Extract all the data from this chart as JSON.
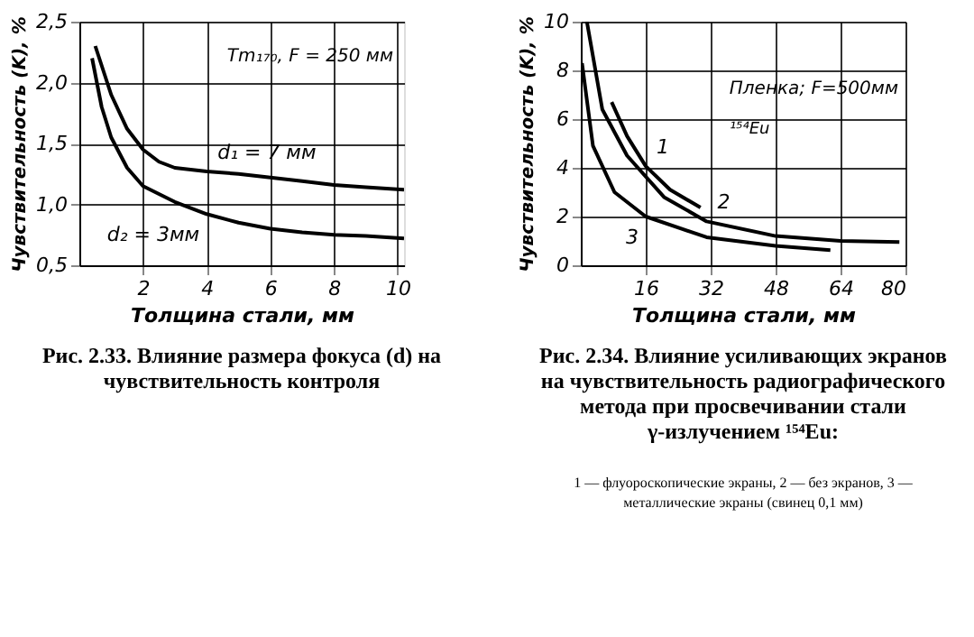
{
  "chart_data": [
    {
      "type": "line",
      "xlabel": "Толщина стали, мм",
      "ylabel": "Чувствительность (K), %",
      "xlim": [
        0,
        10.2
      ],
      "xticks": [
        2,
        4,
        6,
        8,
        10
      ],
      "ylim": [
        0.5,
        2.5
      ],
      "yticks": [
        {
          "value": 0.5,
          "label": "0,5"
        },
        {
          "value": 1.0,
          "label": "1,0"
        },
        {
          "value": 1.5,
          "label": "1,5"
        },
        {
          "value": 2.0,
          "label": "2,0"
        },
        {
          "value": 2.5,
          "label": "2,5"
        }
      ],
      "grid": true,
      "marker": "none",
      "line_style": "solid",
      "series": [
        {
          "name": "d₁ = 7 мм",
          "color": "#000000",
          "x": [
            0.5,
            1,
            1.5,
            2,
            2.5,
            3,
            4,
            5,
            6,
            7,
            8,
            9,
            10.2
          ],
          "values": [
            2.3,
            1.9,
            1.62,
            1.45,
            1.35,
            1.3,
            1.27,
            1.25,
            1.22,
            1.19,
            1.16,
            1.14,
            1.12
          ]
        },
        {
          "name": "d₂ = 3мм",
          "color": "#000000",
          "x": [
            0.4,
            0.7,
            1,
            1.5,
            2,
            3,
            4,
            5,
            6,
            7,
            8,
            9,
            10.2
          ],
          "values": [
            2.2,
            1.8,
            1.55,
            1.3,
            1.15,
            1.02,
            0.92,
            0.85,
            0.8,
            0.77,
            0.75,
            0.74,
            0.72
          ]
        }
      ],
      "annotations": [
        "Tm₁₇₀, F = 250 мм",
        "Рис. 2.33. Влияние размера фокуса (d) на чувствительность контроля"
      ]
    },
    {
      "type": "line",
      "xlabel": "Толщина стали, мм",
      "ylabel": "Чувствительность (K), %",
      "xlim": [
        0,
        80
      ],
      "xticks": [
        16,
        32,
        48,
        64,
        80
      ],
      "ylim": [
        0,
        10
      ],
      "yticks": [
        0,
        2,
        4,
        6,
        8,
        10
      ],
      "grid": true,
      "marker": "none",
      "line_style": "solid",
      "series": [
        {
          "name": "1",
          "color": "#000000",
          "x": [
            7.6,
            11.4,
            16,
            22,
            29.5
          ],
          "values": [
            6.7,
            5.3,
            4.07,
            3.1,
            2.37
          ]
        },
        {
          "name": "2",
          "color": "#000000",
          "x": [
            1.5,
            5.3,
            11.4,
            20.5,
            31,
            48,
            64,
            78.5
          ],
          "values": [
            10,
            6.4,
            4.5,
            2.8,
            1.8,
            1.2,
            1.0,
            0.95
          ]
        },
        {
          "name": "3",
          "color": "#000000",
          "x": [
            0.3,
            3,
            8.3,
            16,
            31,
            48,
            61.5
          ],
          "values": [
            8.3,
            4.9,
            3.0,
            2.0,
            1.15,
            0.8,
            0.62
          ]
        }
      ],
      "annotations": [
        "Пленка; F=500мм",
        "¹⁵⁴Eu",
        "Рис. 2.34. Влияние усиливающих экранов на чувствительность радиографического метода при просвечивании стали γ-излучением ¹⁵⁴Eu:",
        "1 — флуороскопические экраны, 2 — без экранов, 3 — металлические экраны (свинец 0,1 мм)"
      ]
    }
  ]
}
